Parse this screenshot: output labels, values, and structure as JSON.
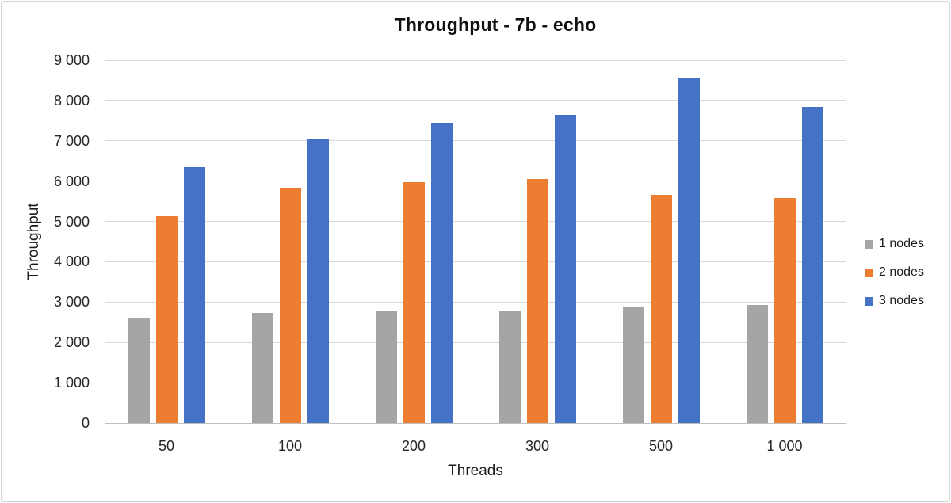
{
  "chart_data": {
    "type": "bar",
    "title": "Throughput - 7b - echo",
    "xlabel": "Threads",
    "ylabel": "Throughput",
    "categories": [
      "50",
      "100",
      "200",
      "300",
      "500",
      "1 000"
    ],
    "series": [
      {
        "name": "1 nodes",
        "color": "#A5A5A5",
        "values": [
          2600,
          2740,
          2770,
          2790,
          2880,
          2930
        ]
      },
      {
        "name": "2 nodes",
        "color": "#ED7D31",
        "values": [
          5130,
          5830,
          5980,
          6060,
          5660,
          5580
        ]
      },
      {
        "name": "3 nodes",
        "color": "#4472C4",
        "values": [
          6340,
          7060,
          7450,
          7640,
          8560,
          7840
        ]
      }
    ],
    "ylim": [
      0,
      9000
    ],
    "ytick_step": 1000,
    "ytick_labels": [
      "0",
      "1 000",
      "2 000",
      "3 000",
      "4 000",
      "5 000",
      "6 000",
      "7 000",
      "8 000",
      "9 000"
    ],
    "grid": true,
    "legend_position": "right"
  },
  "colors": {
    "gridline": "#D9D9D9",
    "axis_line": "#BFBFBF",
    "border": "#D6D4D4",
    "background": "#FFFFFF",
    "text": "#262626"
  }
}
